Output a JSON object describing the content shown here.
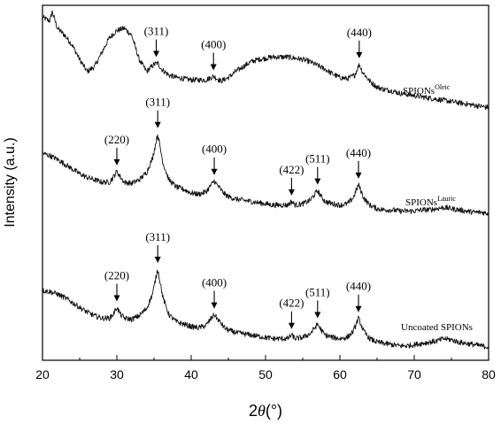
{
  "chart_data": {
    "type": "line",
    "xlabel": "2θ(°)",
    "xlabel_parts": {
      "prefix": "2",
      "theta": "θ",
      "unit": "(°)"
    },
    "ylabel": "Intensity (a.u.)",
    "xlim": [
      20,
      80
    ],
    "x_ticks": [
      20,
      30,
      40,
      50,
      60,
      70,
      80
    ],
    "y_ticks_shown": false,
    "grid": false,
    "legend": "none",
    "series": [
      {
        "name": "SPIONsOleic",
        "label_base": "SPIONs",
        "label_sup": "Oleic",
        "offset": 2.0,
        "x": [
          20,
          21,
          21.3,
          22,
          23,
          24,
          25,
          26,
          27,
          28,
          29,
          30,
          31,
          32,
          33,
          34,
          35,
          35.5,
          36,
          37,
          38,
          39,
          40,
          41,
          42,
          43,
          43.5,
          44,
          45,
          46,
          47,
          48,
          49,
          50,
          51,
          52,
          53,
          54,
          55,
          56,
          57,
          58,
          59,
          60,
          61,
          62,
          62.6,
          63,
          64,
          65,
          66,
          67,
          68,
          69,
          70,
          71,
          72,
          73,
          74,
          75,
          76,
          77,
          78,
          79,
          80
        ],
        "y": [
          0.95,
          0.92,
          1.0,
          0.86,
          0.8,
          0.72,
          0.6,
          0.5,
          0.54,
          0.66,
          0.78,
          0.84,
          0.86,
          0.8,
          0.6,
          0.5,
          0.56,
          0.57,
          0.52,
          0.47,
          0.45,
          0.44,
          0.43,
          0.43,
          0.43,
          0.46,
          0.44,
          0.42,
          0.45,
          0.5,
          0.54,
          0.58,
          0.6,
          0.61,
          0.62,
          0.62,
          0.62,
          0.61,
          0.6,
          0.58,
          0.55,
          0.52,
          0.48,
          0.45,
          0.44,
          0.47,
          0.56,
          0.5,
          0.42,
          0.37,
          0.35,
          0.34,
          0.32,
          0.31,
          0.3,
          0.29,
          0.28,
          0.27,
          0.26,
          0.25,
          0.24,
          0.23,
          0.22,
          0.21,
          0.2
        ]
      },
      {
        "name": "SPIONsLauric",
        "label_base": "SPIONs",
        "label_sup": "Lauric",
        "offset": 1.0,
        "x": [
          20,
          21,
          22,
          23,
          24,
          25,
          26,
          27,
          28,
          29,
          29.5,
          30,
          30.5,
          31,
          32,
          33,
          34,
          34.8,
          35.5,
          36.2,
          37,
          38,
          39,
          40,
          41,
          42,
          42.6,
          43.1,
          43.7,
          44.5,
          45,
          46,
          47,
          48,
          49,
          50,
          51,
          52,
          53,
          53.5,
          54,
          55,
          56,
          56.5,
          57,
          57.5,
          58,
          59,
          60,
          61,
          61.8,
          62.5,
          63.2,
          64,
          65,
          66,
          67,
          68,
          69,
          70,
          71,
          72,
          73,
          74,
          75,
          76,
          77,
          78,
          79,
          80
        ],
        "y": [
          0.82,
          0.8,
          0.77,
          0.73,
          0.69,
          0.65,
          0.62,
          0.6,
          0.58,
          0.58,
          0.62,
          0.67,
          0.62,
          0.58,
          0.57,
          0.6,
          0.66,
          0.78,
          0.98,
          0.74,
          0.6,
          0.54,
          0.52,
          0.49,
          0.48,
          0.5,
          0.55,
          0.59,
          0.54,
          0.48,
          0.46,
          0.44,
          0.43,
          0.42,
          0.41,
          0.4,
          0.39,
          0.39,
          0.39,
          0.42,
          0.39,
          0.4,
          0.43,
          0.47,
          0.51,
          0.46,
          0.42,
          0.4,
          0.39,
          0.4,
          0.45,
          0.56,
          0.45,
          0.39,
          0.36,
          0.35,
          0.35,
          0.34,
          0.34,
          0.34,
          0.35,
          0.35,
          0.36,
          0.37,
          0.36,
          0.35,
          0.34,
          0.33,
          0.33,
          0.32
        ]
      },
      {
        "name": "Uncoated SPIONs",
        "label_base": "Uncoated SPIONs",
        "label_sup": "",
        "offset": 0.0,
        "x": [
          20,
          21,
          22,
          23,
          24,
          25,
          26,
          27,
          28,
          29,
          29.5,
          30,
          30.5,
          31,
          32,
          33,
          34,
          34.8,
          35.5,
          36.2,
          37,
          38,
          39,
          40,
          41,
          42,
          42.6,
          43.1,
          43.7,
          44.5,
          45,
          46,
          47,
          48,
          49,
          50,
          51,
          52,
          53,
          53.5,
          54,
          55,
          56,
          56.5,
          57,
          57.5,
          58,
          59,
          60,
          61,
          61.8,
          62.5,
          63.2,
          64,
          65,
          66,
          67,
          68,
          69,
          70,
          71,
          72,
          73,
          74,
          75,
          76,
          77,
          78,
          79,
          80
        ],
        "y": [
          0.68,
          0.67,
          0.65,
          0.62,
          0.58,
          0.54,
          0.5,
          0.47,
          0.45,
          0.45,
          0.48,
          0.54,
          0.48,
          0.45,
          0.44,
          0.47,
          0.53,
          0.65,
          0.86,
          0.62,
          0.48,
          0.42,
          0.4,
          0.38,
          0.37,
          0.39,
          0.44,
          0.48,
          0.43,
          0.37,
          0.35,
          0.33,
          0.32,
          0.31,
          0.3,
          0.29,
          0.28,
          0.28,
          0.28,
          0.31,
          0.28,
          0.29,
          0.32,
          0.36,
          0.4,
          0.35,
          0.31,
          0.29,
          0.28,
          0.29,
          0.34,
          0.45,
          0.34,
          0.28,
          0.25,
          0.24,
          0.23,
          0.22,
          0.22,
          0.23,
          0.24,
          0.25,
          0.26,
          0.28,
          0.27,
          0.25,
          0.24,
          0.23,
          0.22,
          0.21
        ]
      }
    ],
    "annotations": [
      {
        "series": 0,
        "x": 35.3,
        "y": 0.59,
        "label": "(311)"
      },
      {
        "series": 0,
        "x": 43.0,
        "y": 0.48,
        "label": "(400)"
      },
      {
        "series": 0,
        "x": 62.6,
        "y": 0.58,
        "label": "(440)"
      },
      {
        "series": 1,
        "x": 30.0,
        "y": 0.69,
        "label": "(220)"
      },
      {
        "series": 1,
        "x": 35.5,
        "y": 1.0,
        "label": "(311)"
      },
      {
        "series": 1,
        "x": 43.1,
        "y": 0.61,
        "label": "(400)"
      },
      {
        "series": 1,
        "x": 53.5,
        "y": 0.44,
        "label": "(422)"
      },
      {
        "series": 1,
        "x": 57.0,
        "y": 0.53,
        "label": "(511)"
      },
      {
        "series": 1,
        "x": 62.5,
        "y": 0.58,
        "label": "(440)"
      },
      {
        "series": 2,
        "x": 30.0,
        "y": 0.56,
        "label": "(220)"
      },
      {
        "series": 2,
        "x": 35.5,
        "y": 0.88,
        "label": "(311)"
      },
      {
        "series": 2,
        "x": 43.1,
        "y": 0.5,
        "label": "(400)"
      },
      {
        "series": 2,
        "x": 53.5,
        "y": 0.33,
        "label": "(422)"
      },
      {
        "series": 2,
        "x": 57.0,
        "y": 0.42,
        "label": "(511)"
      },
      {
        "series": 2,
        "x": 62.5,
        "y": 0.47,
        "label": "(440)"
      }
    ]
  }
}
